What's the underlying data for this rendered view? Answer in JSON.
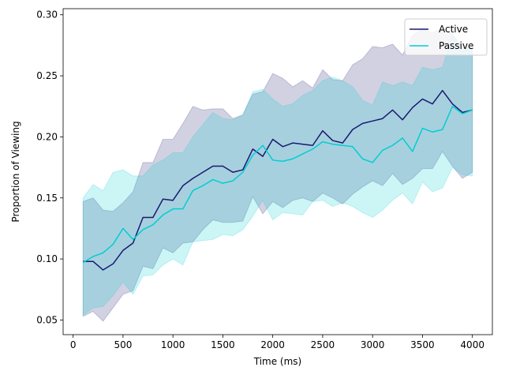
{
  "chart_data": {
    "type": "line",
    "xlabel": "Time (ms)",
    "ylabel": "Proportion of Viewing",
    "xlim": [
      -100,
      4200
    ],
    "ylim": [
      0.038,
      0.305
    ],
    "xticks": [
      0,
      500,
      1000,
      1500,
      2000,
      2500,
      3000,
      3500,
      4000
    ],
    "yticks": [
      0.05,
      0.1,
      0.15,
      0.2,
      0.25,
      0.3
    ],
    "ytick_labels": [
      "0.05",
      "0.10",
      "0.15",
      "0.20",
      "0.25",
      "0.30"
    ],
    "grid": false,
    "legend_position": "top-right",
    "x": [
      100,
      200,
      300,
      400,
      500,
      600,
      700,
      800,
      900,
      1000,
      1100,
      1200,
      1300,
      1400,
      1500,
      1600,
      1700,
      1800,
      1900,
      2000,
      2100,
      2200,
      2300,
      2400,
      2500,
      2600,
      2700,
      2800,
      2900,
      3000,
      3100,
      3200,
      3300,
      3400,
      3500,
      3600,
      3700,
      3800,
      3900,
      4000
    ],
    "series": [
      {
        "name": "Active",
        "color": "#191970",
        "band_color": "#191970",
        "band_opacity": 0.2,
        "values": [
          0.098,
          0.098,
          0.091,
          0.096,
          0.107,
          0.113,
          0.134,
          0.134,
          0.149,
          0.148,
          0.16,
          0.166,
          0.171,
          0.176,
          0.176,
          0.171,
          0.173,
          0.19,
          0.184,
          0.198,
          0.192,
          0.195,
          0.194,
          0.193,
          0.205,
          0.197,
          0.195,
          0.206,
          0.211,
          0.213,
          0.215,
          0.222,
          0.214,
          0.224,
          0.231,
          0.227,
          0.238,
          0.227,
          0.22,
          0.222
        ],
        "lower": [
          0.053,
          0.057,
          0.049,
          0.06,
          0.071,
          0.074,
          0.094,
          0.092,
          0.109,
          0.105,
          0.113,
          0.114,
          0.124,
          0.132,
          0.13,
          0.13,
          0.131,
          0.151,
          0.137,
          0.147,
          0.142,
          0.148,
          0.15,
          0.147,
          0.154,
          0.15,
          0.145,
          0.153,
          0.159,
          0.164,
          0.16,
          0.17,
          0.161,
          0.166,
          0.174,
          0.174,
          0.188,
          0.176,
          0.166,
          0.171
        ],
        "upper": [
          0.147,
          0.15,
          0.14,
          0.139,
          0.146,
          0.155,
          0.179,
          0.179,
          0.198,
          0.198,
          0.211,
          0.225,
          0.222,
          0.223,
          0.223,
          0.215,
          0.218,
          0.235,
          0.237,
          0.252,
          0.248,
          0.241,
          0.246,
          0.24,
          0.255,
          0.247,
          0.246,
          0.259,
          0.264,
          0.274,
          0.273,
          0.276,
          0.267,
          0.283,
          0.289,
          0.285,
          0.29,
          0.284,
          0.274,
          0.272
        ]
      },
      {
        "name": "Passive",
        "color": "#00CED1",
        "band_color": "#00CED1",
        "band_opacity": 0.2,
        "values": [
          0.097,
          0.102,
          0.105,
          0.112,
          0.125,
          0.116,
          0.124,
          0.128,
          0.136,
          0.141,
          0.141,
          0.156,
          0.16,
          0.165,
          0.162,
          0.164,
          0.171,
          0.185,
          0.193,
          0.181,
          0.18,
          0.182,
          0.186,
          0.19,
          0.196,
          0.194,
          0.193,
          0.192,
          0.182,
          0.179,
          0.189,
          0.193,
          0.199,
          0.188,
          0.207,
          0.204,
          0.206,
          0.225,
          0.219,
          0.222
        ],
        "lower": [
          0.054,
          0.06,
          0.061,
          0.07,
          0.081,
          0.071,
          0.086,
          0.087,
          0.095,
          0.1,
          0.095,
          0.114,
          0.115,
          0.116,
          0.12,
          0.119,
          0.124,
          0.135,
          0.148,
          0.132,
          0.138,
          0.137,
          0.136,
          0.147,
          0.148,
          0.143,
          0.146,
          0.143,
          0.138,
          0.134,
          0.14,
          0.148,
          0.154,
          0.145,
          0.163,
          0.155,
          0.158,
          0.175,
          0.169,
          0.168
        ],
        "upper": [
          0.15,
          0.161,
          0.156,
          0.171,
          0.173,
          0.168,
          0.168,
          0.177,
          0.181,
          0.187,
          0.187,
          0.2,
          0.21,
          0.22,
          0.215,
          0.214,
          0.218,
          0.237,
          0.239,
          0.231,
          0.225,
          0.227,
          0.234,
          0.238,
          0.246,
          0.249,
          0.246,
          0.241,
          0.23,
          0.226,
          0.245,
          0.242,
          0.245,
          0.242,
          0.257,
          0.255,
          0.257,
          0.283,
          0.27,
          0.276
        ]
      }
    ]
  }
}
